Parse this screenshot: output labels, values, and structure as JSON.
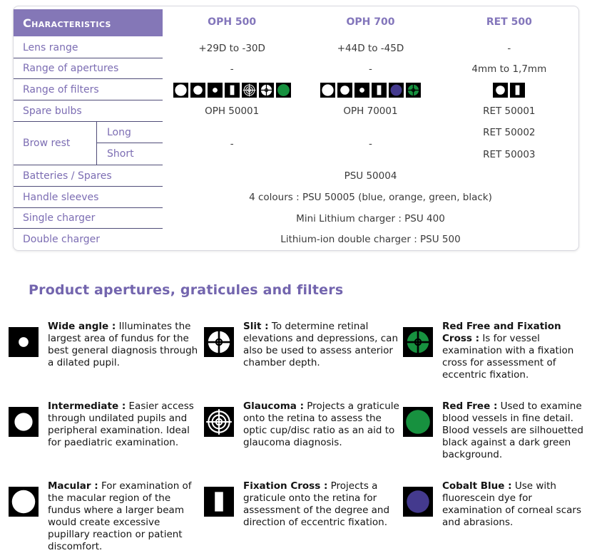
{
  "colors": {
    "header_bg": "#8477b7",
    "label_purple": "#7c6db3",
    "line_navy": "#4f4c78",
    "heading_purple": "#7365ae",
    "green": "#17913f",
    "cobalt": "#443a8e"
  },
  "table": {
    "header": {
      "label": "Characteristics",
      "columns": [
        "OPH 500",
        "OPH 700",
        "RET 500"
      ]
    },
    "rows": {
      "lens_range": {
        "label": "Lens range",
        "values": [
          "+29D to -30D",
          "+44D to -45D",
          "-"
        ]
      },
      "apertures": {
        "label": "Range of apertures",
        "values": [
          "-",
          "-",
          "4mm to 1,7mm"
        ]
      },
      "filters": {
        "label": "Range of filters",
        "icons": {
          "oph500": [
            "aperture-large",
            "aperture-medium",
            "aperture-small",
            "slit",
            "graticule",
            "crosshair",
            "green-circle"
          ],
          "oph700": [
            "aperture-large",
            "aperture-medium",
            "aperture-small",
            "slit",
            "cobalt-circle",
            "green-target"
          ],
          "ret500": [
            "aperture-medium",
            "slit"
          ]
        }
      },
      "spare_bulbs": {
        "label": "Spare bulbs",
        "values": [
          "OPH 50001",
          "OPH 70001",
          "RET 50001"
        ]
      },
      "brow_rest": {
        "label": "Brow rest",
        "sub_long": "Long",
        "sub_short": "Short",
        "values": {
          "oph500": "-",
          "oph700": "-",
          "ret_long": "RET 50002",
          "ret_short": "RET 50003"
        }
      },
      "batteries": {
        "label": "Batteries / Spares",
        "value": "PSU 50004"
      },
      "handle_sleeves": {
        "label": "Handle sleeves",
        "value": "4 colours : PSU 50005 (blue, orange, green, black)"
      },
      "single_charger": {
        "label": "Single charger",
        "value": "Mini Lithium charger : PSU 400"
      },
      "double_charger": {
        "label": "Double charger",
        "value": "Lithium-ion double charger : PSU 500"
      }
    }
  },
  "section": {
    "heading": "Product apertures, graticules and filters",
    "items": [
      {
        "icon": "aperture-small",
        "title": "Wide angle :",
        "text": "Illuminates the largest area of fundus for the best general diagnosis through a dilated pupil."
      },
      {
        "icon": "crosshair",
        "title": "Slit :",
        "text": "To determine retinal elevations and depressions, can also be used to assess anterior chamber depth."
      },
      {
        "icon": "green-target",
        "title": "Red Free and Fixation Cross :",
        "text": "Is for vessel examination with a fixation cross for assessment of eccentric fixation."
      },
      {
        "icon": "aperture-medium",
        "title": "Intermediate :",
        "text": "Easier access through undilated pupils and peripheral examination. Ideal for paediatric examination."
      },
      {
        "icon": "graticule",
        "title": "Glaucoma :",
        "text": "Projects a graticule onto the retina to assess the optic cup/disc ratio as an aid to glaucoma diagnosis."
      },
      {
        "icon": "green-circle",
        "title": "Red Free :",
        "text": "Used to examine blood vessels in fine detail. Blood vessels are silhouetted black against a dark green background."
      },
      {
        "icon": "aperture-large",
        "title": "Macular :",
        "text": "For examination of the macular region of the fundus where a larger beam would create excessive pupillary reaction or patient discomfort."
      },
      {
        "icon": "slit",
        "title": "Fixation Cross :",
        "text": "Projects a graticule onto the retina for assessment of the degree and direction of eccentric fixation."
      },
      {
        "icon": "cobalt-circle",
        "title": "Cobalt Blue :",
        "text": "Use with fluorescein dye for examination of corneal scars and abrasions."
      }
    ]
  }
}
